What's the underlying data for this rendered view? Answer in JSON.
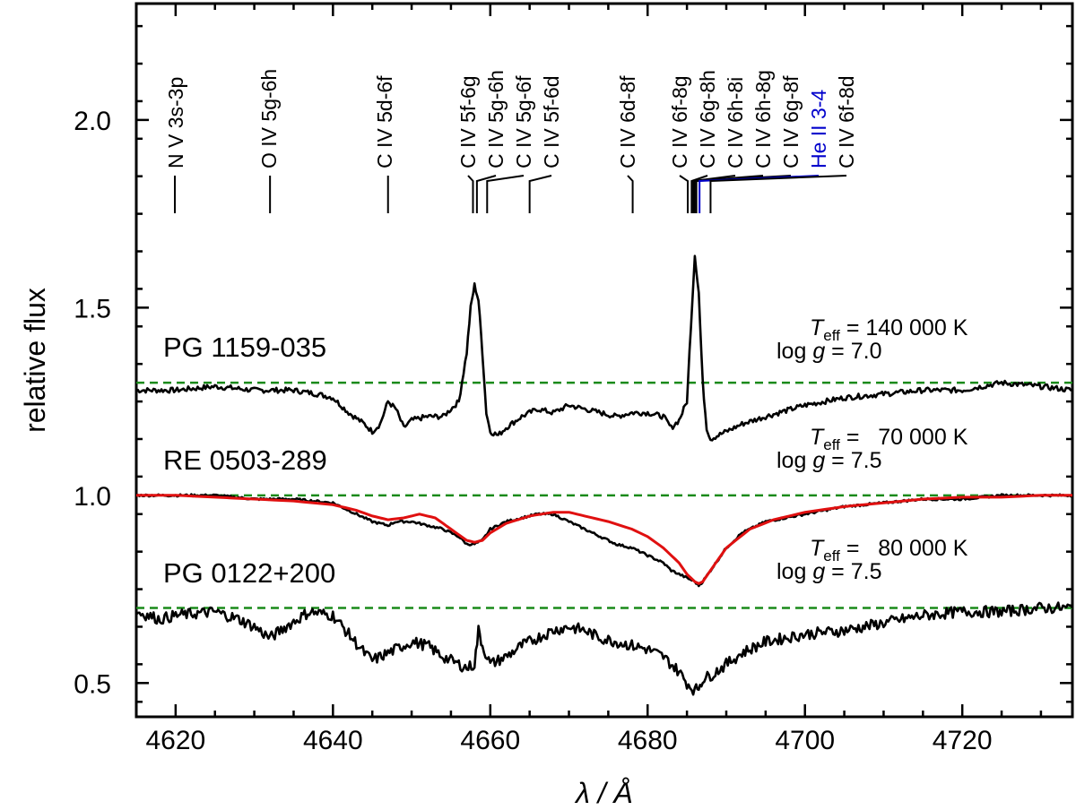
{
  "chart_data": {
    "type": "line",
    "title": "",
    "xlabel": "λ / Å",
    "ylabel": "relative flux",
    "xlim": [
      4615,
      4734
    ],
    "ylim": [
      0.41,
      2.31
    ],
    "xticks": [
      4620,
      4640,
      4660,
      4680,
      4700,
      4720
    ],
    "yticks": [
      0.5,
      1.0,
      1.5,
      2.0
    ],
    "ytick_labels": [
      "0.5",
      "1.0",
      "1.5",
      "2.0"
    ],
    "grid": false,
    "line_identifications": [
      {
        "label": "N V 3s-3p",
        "wavelength": 4619.9,
        "color": "#000000"
      },
      {
        "label": "O IV 5g-6h",
        "wavelength": 4632.0,
        "color": "#000000"
      },
      {
        "label": "C IV 5d-6f",
        "wavelength": 4647.0,
        "color": "#000000"
      },
      {
        "label": "C IV 5f-6g",
        "wavelength": 4657.8,
        "color": "#000000"
      },
      {
        "label": "C IV 5g-6h",
        "wavelength": 4658.3,
        "color": "#000000"
      },
      {
        "label": "C IV 5g-6f",
        "wavelength": 4659.6,
        "color": "#000000"
      },
      {
        "label": "C IV 5f-6d",
        "wavelength": 4665.0,
        "color": "#000000"
      },
      {
        "label": "C IV 6d-8f",
        "wavelength": 4678.1,
        "color": "#000000"
      },
      {
        "label": "C IV 6f-8g",
        "wavelength": 4685.1,
        "color": "#000000"
      },
      {
        "label": "C IV 6g-8h",
        "wavelength": 4685.6,
        "color": "#000000"
      },
      {
        "label": "C IV 6h-8i",
        "wavelength": 4685.8,
        "color": "#000000"
      },
      {
        "label": "C IV 6h-8g",
        "wavelength": 4686.0,
        "color": "#000000"
      },
      {
        "label": "C IV 6g-8f",
        "wavelength": 4686.2,
        "color": "#000000"
      },
      {
        "label": "He II 3-4",
        "wavelength": 4686.6,
        "color": "#0000cc"
      },
      {
        "label": "C IV 6f-8d",
        "wavelength": 4688.0,
        "color": "#000000"
      }
    ],
    "series": [
      {
        "name": "PG 1159-035",
        "teff_label": "140 000 K",
        "logg_label": "7.0",
        "continuum": 1.3,
        "color": "#000000",
        "x": [
          4615,
          4620,
          4625,
          4630,
          4635,
          4638,
          4640,
          4642,
          4644,
          4645,
          4646,
          4647,
          4648,
          4649,
          4650,
          4652,
          4654,
          4656,
          4657,
          4657.5,
          4658,
          4658.5,
          4659,
          4659.5,
          4660,
          4661,
          4662,
          4664,
          4666,
          4668,
          4670,
          4672,
          4674,
          4676,
          4678,
          4680,
          4682,
          4683,
          4684,
          4685,
          4685.5,
          4686,
          4686.5,
          4687,
          4687.5,
          4688,
          4690,
          4692,
          4695,
          4700,
          4705,
          4710,
          4715,
          4720,
          4725,
          4730,
          4734
        ],
        "y": [
          1.28,
          1.28,
          1.29,
          1.28,
          1.28,
          1.27,
          1.26,
          1.22,
          1.19,
          1.17,
          1.19,
          1.25,
          1.23,
          1.18,
          1.2,
          1.21,
          1.21,
          1.25,
          1.38,
          1.5,
          1.56,
          1.52,
          1.38,
          1.22,
          1.17,
          1.16,
          1.18,
          1.21,
          1.23,
          1.22,
          1.24,
          1.23,
          1.22,
          1.21,
          1.22,
          1.22,
          1.21,
          1.18,
          1.2,
          1.25,
          1.45,
          1.64,
          1.54,
          1.3,
          1.18,
          1.15,
          1.17,
          1.19,
          1.21,
          1.24,
          1.26,
          1.27,
          1.28,
          1.28,
          1.3,
          1.29,
          1.28
        ]
      },
      {
        "name": "RE 0503-289",
        "teff_label": "70 000 K",
        "logg_label": "7.5",
        "continuum": 1.0,
        "color": "#000000",
        "x": [
          4615,
          4620,
          4625,
          4630,
          4635,
          4640,
          4643,
          4645,
          4647,
          4648,
          4650,
          4652,
          4654,
          4656,
          4657,
          4658,
          4659,
          4660,
          4662,
          4664,
          4666,
          4668,
          4670,
          4672,
          4674,
          4676,
          4678,
          4680,
          4682,
          4683,
          4684,
          4685,
          4686,
          4686.5,
          4687,
          4688,
          4690,
          4692,
          4695,
          4700,
          4705,
          4710,
          4715,
          4720,
          4725,
          4730,
          4734
        ],
        "y": [
          1.0,
          1.0,
          1.0,
          0.99,
          0.99,
          0.98,
          0.95,
          0.93,
          0.92,
          0.93,
          0.93,
          0.92,
          0.91,
          0.89,
          0.87,
          0.87,
          0.88,
          0.91,
          0.93,
          0.94,
          0.95,
          0.95,
          0.93,
          0.91,
          0.89,
          0.87,
          0.86,
          0.84,
          0.82,
          0.8,
          0.79,
          0.78,
          0.77,
          0.76,
          0.77,
          0.8,
          0.86,
          0.9,
          0.93,
          0.95,
          0.97,
          0.98,
          0.99,
          0.99,
          1.0,
          1.0,
          1.0
        ]
      },
      {
        "name": "RE 0503-289 model",
        "continuum": 1.0,
        "color": "#e01010",
        "x": [
          4615,
          4620,
          4625,
          4630,
          4635,
          4640,
          4643,
          4645,
          4647,
          4649,
          4651,
          4653,
          4655,
          4657,
          4658,
          4659,
          4660,
          4662,
          4665,
          4668,
          4670,
          4672,
          4675,
          4678,
          4680,
          4682,
          4684,
          4685,
          4686,
          4686.5,
          4687,
          4688,
          4690,
          4693,
          4696,
          4700,
          4705,
          4710,
          4715,
          4720,
          4725,
          4730,
          4734
        ],
        "y": [
          1.0,
          1.0,
          0.995,
          0.99,
          0.985,
          0.975,
          0.96,
          0.945,
          0.935,
          0.94,
          0.95,
          0.94,
          0.91,
          0.88,
          0.875,
          0.88,
          0.9,
          0.925,
          0.945,
          0.955,
          0.955,
          0.945,
          0.93,
          0.91,
          0.89,
          0.86,
          0.82,
          0.79,
          0.77,
          0.765,
          0.77,
          0.8,
          0.86,
          0.91,
          0.935,
          0.955,
          0.97,
          0.98,
          0.99,
          0.995,
          0.995,
          1.0,
          1.0
        ]
      },
      {
        "name": "PG 0122+200",
        "teff_label": "80 000 K",
        "logg_label": "7.5",
        "continuum": 0.7,
        "color": "#000000",
        "x": [
          4615,
          4618,
          4620,
          4625,
          4628,
          4630,
          4632,
          4634,
          4637,
          4640,
          4642,
          4644,
          4645,
          4646,
          4648,
          4650,
          4652,
          4654,
          4656,
          4657,
          4658,
          4658.5,
          4659,
          4660,
          4662,
          4664,
          4666,
          4668,
          4670,
          4672,
          4674,
          4676,
          4678,
          4680,
          4682,
          4684,
          4685,
          4686,
          4686.5,
          4687,
          4688,
          4690,
          4692,
          4695,
          4700,
          4705,
          4710,
          4715,
          4720,
          4725,
          4730,
          4734
        ],
        "y": [
          0.69,
          0.67,
          0.68,
          0.69,
          0.67,
          0.65,
          0.62,
          0.65,
          0.69,
          0.68,
          0.63,
          0.58,
          0.56,
          0.57,
          0.59,
          0.61,
          0.6,
          0.57,
          0.55,
          0.54,
          0.55,
          0.64,
          0.6,
          0.55,
          0.57,
          0.6,
          0.62,
          0.64,
          0.65,
          0.64,
          0.62,
          0.61,
          0.6,
          0.59,
          0.57,
          0.53,
          0.5,
          0.48,
          0.49,
          0.51,
          0.52,
          0.55,
          0.58,
          0.61,
          0.63,
          0.64,
          0.66,
          0.68,
          0.69,
          0.69,
          0.7,
          0.7
        ]
      }
    ]
  }
}
